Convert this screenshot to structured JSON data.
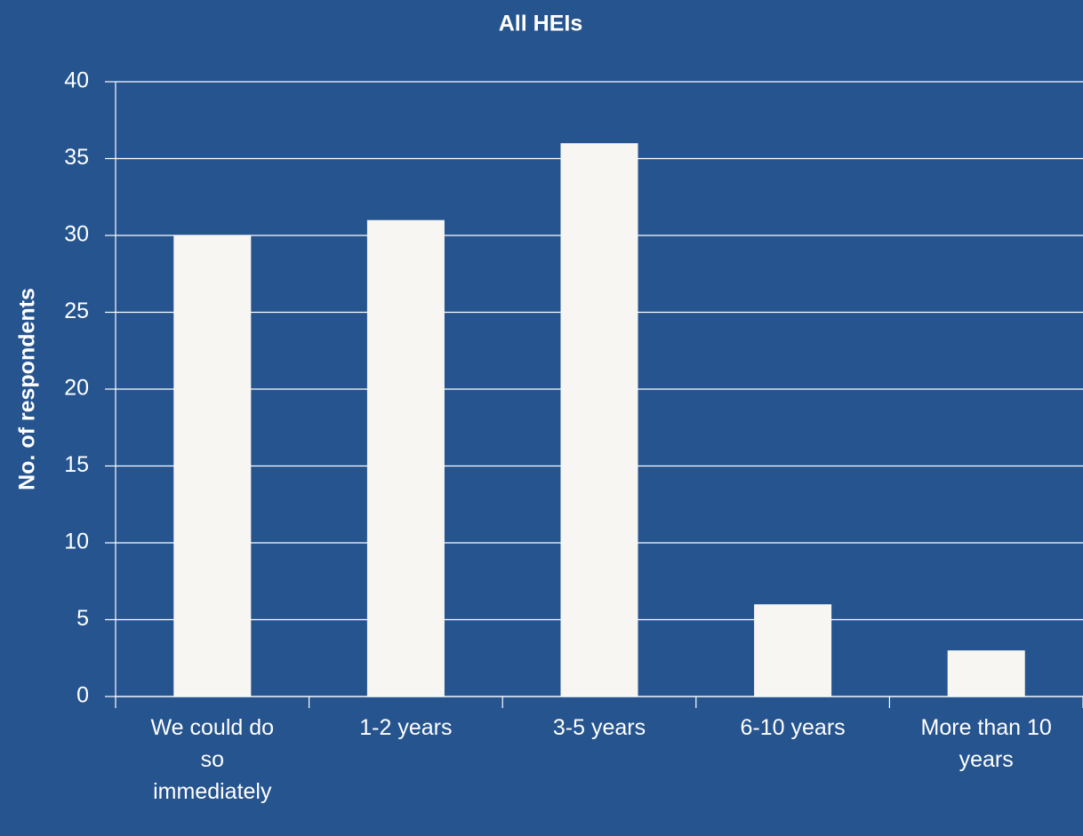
{
  "chart_data": {
    "type": "bar",
    "title": "All HEIs",
    "y_label": "No. of respondents",
    "categories": [
      "We could do so immediately",
      "1-2 years",
      "3-5 years",
      "6-10 years",
      "More than 10 years"
    ],
    "values": [
      30,
      31,
      36,
      6,
      3
    ],
    "color": "#f8f6f2",
    "ylim": [
      0,
      40
    ],
    "yticks": [
      0,
      5,
      10,
      15,
      20,
      25,
      30,
      35,
      40
    ],
    "grid": true
  }
}
